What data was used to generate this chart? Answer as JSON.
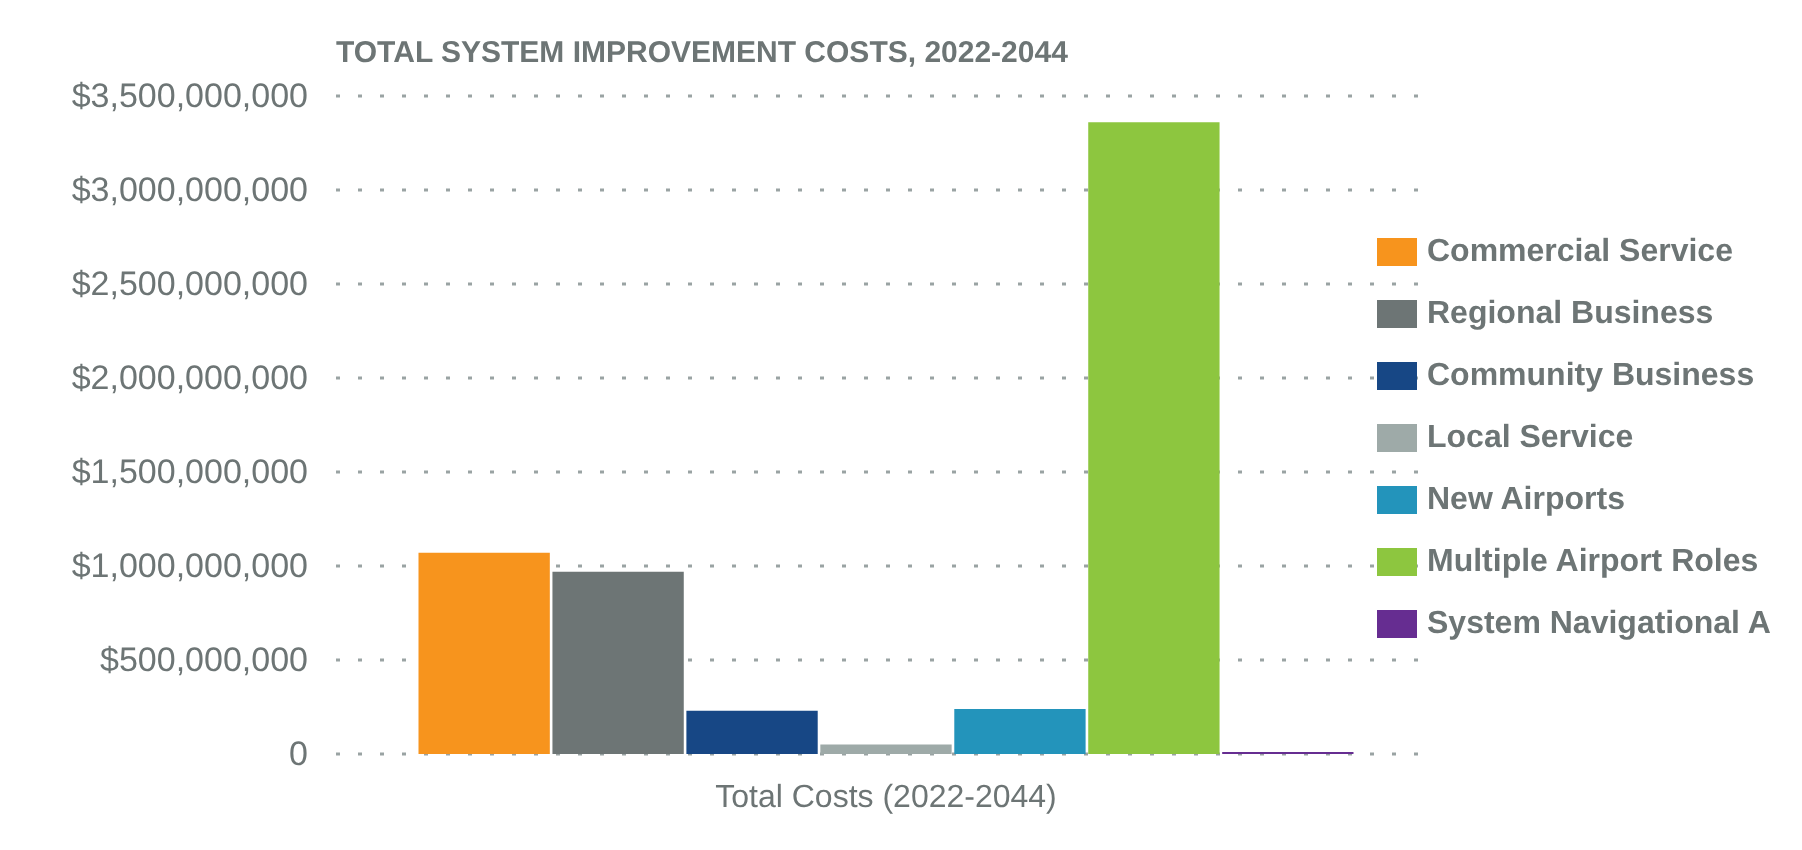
{
  "chart_data": {
    "type": "bar",
    "title": "TOTAL SYSTEM IMPROVEMENT COSTS, 2022-2044",
    "categories": [
      "Total Costs (2022-2044)"
    ],
    "series": [
      {
        "name": "Commercial Service",
        "color": "#f7941d",
        "values": [
          1070000000
        ]
      },
      {
        "name": "Regional Business",
        "color": "#6d7575",
        "values": [
          970000000
        ]
      },
      {
        "name": "Community Business",
        "color": "#174785",
        "values": [
          230000000
        ]
      },
      {
        "name": "Local Service",
        "color": "#9eaaa8",
        "values": [
          50000000
        ]
      },
      {
        "name": "New Airports",
        "color": "#2394bb",
        "values": [
          240000000
        ]
      },
      {
        "name": "Multiple Airport Roles",
        "color": "#8dc63f",
        "values": [
          3360000000
        ]
      },
      {
        "name": "System Navigational A",
        "color": "#662d91",
        "values": [
          10000000
        ]
      }
    ],
    "ylim": [
      0,
      3500000000
    ],
    "yticks": [
      0,
      {
        "value": 500000000,
        "label": "$500,000,000"
      },
      {
        "value": 1000000000,
        "label": "$1,000,000,000"
      },
      {
        "value": 1500000000,
        "label": "$1,500,000,000"
      },
      {
        "value": 2000000000,
        "label": "$2,000,000,000"
      },
      {
        "value": 2500000000,
        "label": "$2,500,000,000"
      },
      {
        "value": 3000000000,
        "label": "$3,000,000,000"
      },
      {
        "value": 3500000000,
        "label": "$3,500,000,000"
      }
    ],
    "grid": "y",
    "legend": "right"
  }
}
